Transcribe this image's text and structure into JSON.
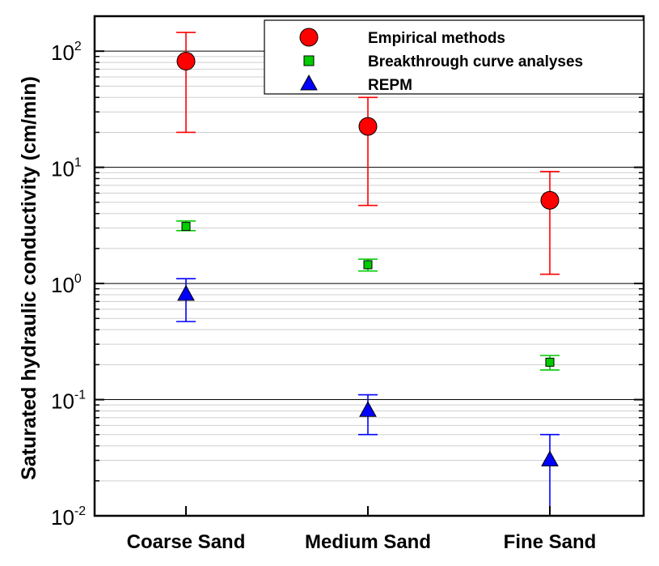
{
  "chart_data": {
    "type": "scatter",
    "categories": [
      "Coarse Sand",
      "Medium Sand",
      "Fine Sand"
    ],
    "ylabel": "Saturated hydraulic conductivity (cm/min)",
    "xlabel": "",
    "yscale": "log",
    "ylim": [
      0.01,
      200
    ],
    "yticks": [
      {
        "base": "10",
        "exp": "-2",
        "value": 0.01
      },
      {
        "base": "10",
        "exp": "-1",
        "value": 0.1
      },
      {
        "base": "10",
        "exp": "0",
        "value": 1
      },
      {
        "base": "10",
        "exp": "1",
        "value": 10
      },
      {
        "base": "10",
        "exp": "2",
        "value": 100
      }
    ],
    "legend_position": "top-right",
    "grid": true,
    "series": [
      {
        "name": "Empirical methods",
        "marker": "circle",
        "color": "#ff0000",
        "values": [
          82,
          22.5,
          5.2
        ],
        "err_low": [
          20,
          4.7,
          1.2
        ],
        "err_high": [
          145,
          40,
          9.2
        ]
      },
      {
        "name": "Breakthrough curve analyses",
        "marker": "square",
        "color": "#00cc00",
        "values": [
          3.1,
          1.45,
          0.21
        ],
        "err_low": [
          2.85,
          1.28,
          0.18
        ],
        "err_high": [
          3.45,
          1.62,
          0.24
        ]
      },
      {
        "name": "REPM",
        "marker": "triangle",
        "color": "#0000ff",
        "values": [
          0.8,
          0.08,
          0.03
        ],
        "err_low": [
          0.47,
          0.05,
          0.01
        ],
        "err_high": [
          1.1,
          0.11,
          0.05
        ]
      }
    ]
  }
}
